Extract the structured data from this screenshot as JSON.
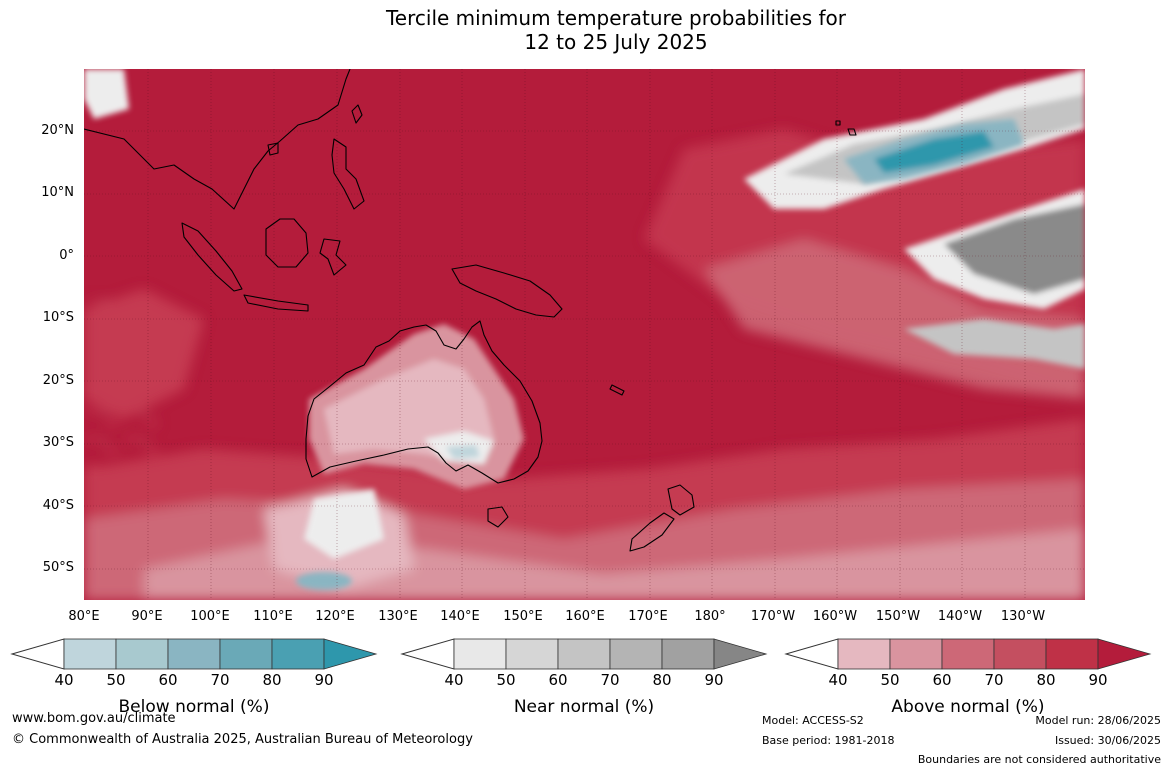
{
  "title_line1": "Tercile minimum temperature probabilities for",
  "title_line2": "12 to 25 July 2025",
  "map": {
    "extent": {
      "lon_min": 80,
      "lon_max": 235,
      "lat_min": -55,
      "lat_max": 30
    },
    "lat_labels": [
      "20°N",
      "10°N",
      "0°",
      "10°S",
      "20°S",
      "30°S",
      "40°S",
      "50°S"
    ],
    "lon_labels": [
      "80°E",
      "90°E",
      "100°E",
      "110°E",
      "120°E",
      "130°E",
      "140°E",
      "150°E",
      "160°E",
      "170°E",
      "180°",
      "170°W",
      "160°W",
      "150°W",
      "140°W",
      "130°W"
    ],
    "dominant_category": "Above normal 90%",
    "colors": {
      "above_90": "#b41c3b",
      "above_80": "#c53a51",
      "above_70": "#cd6877",
      "above_60": "#d9949f",
      "above_50": "#e5b8c0",
      "near_40": "#ededed",
      "near_60": "#c4c4c4",
      "near_90": "#8a8a8a",
      "below_60": "#8ab5c2",
      "below_80": "#2e97ac",
      "coastline": "#000000"
    }
  },
  "legends": [
    {
      "name": "Below normal (%)",
      "ticks": [
        "40",
        "50",
        "60",
        "70",
        "80",
        "90"
      ],
      "colors": [
        "#bfd5dc",
        "#a8c9cf",
        "#8ab5c2",
        "#6aa9b7",
        "#4aa0b2",
        "#2e97ac"
      ]
    },
    {
      "name": "Near normal (%)",
      "ticks": [
        "40",
        "50",
        "60",
        "70",
        "80",
        "90"
      ],
      "colors": [
        "#e8e8e8",
        "#d6d6d6",
        "#c4c4c4",
        "#b4b4b4",
        "#a1a1a1",
        "#868686"
      ]
    },
    {
      "name": "Above normal (%)",
      "ticks": [
        "40",
        "50",
        "60",
        "70",
        "80",
        "90"
      ],
      "colors": [
        "#e5b8c0",
        "#d9949f",
        "#cd6877",
        "#c44f60",
        "#bf3147",
        "#b41c3b"
      ]
    }
  ],
  "footer": {
    "url": "www.bom.gov.au/climate",
    "copyright": "© Commonwealth of Australia 2025, Australian Bureau of Meteorology",
    "model": "Model: ACCESS-S2",
    "base_period": "Base period: 1981-2018",
    "model_run": "Model run: 28/06/2025",
    "issued": "Issued: 30/06/2025",
    "disclaimer": "Boundaries are not considered authoritative"
  }
}
